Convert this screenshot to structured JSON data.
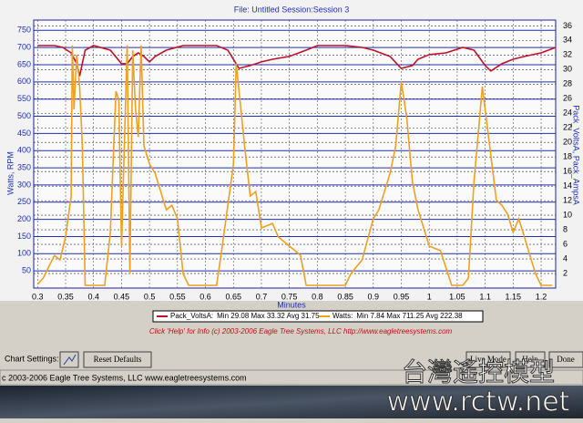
{
  "chart_data": {
    "type": "line",
    "title": "File: Untitled   Session:Session 3",
    "x_label": "Minutes",
    "y_label": "Watts, RPM",
    "y2_label": "Pack_VoltsA, Pack_AmpsA",
    "xlim": [
      0.293,
      1.226
    ],
    "xticks": [
      0.3,
      0.35,
      0.4,
      0.45,
      0.5,
      0.55,
      0.6,
      0.65,
      0.7,
      0.75,
      0.8,
      0.85,
      0.9,
      0.95,
      1,
      1.05,
      1.1,
      1.15,
      1.2
    ],
    "ylim": [
      0,
      780
    ],
    "yticks": [
      50,
      100,
      150,
      200,
      250,
      300,
      350,
      400,
      450,
      500,
      550,
      600,
      650,
      700,
      750
    ],
    "y2lim": [
      0,
      36.8
    ],
    "y2ticks": [
      2,
      4,
      6,
      8,
      10,
      12,
      14,
      16,
      18,
      20,
      22,
      24,
      26,
      28,
      30,
      32,
      34,
      36
    ],
    "grid": true,
    "series": [
      {
        "name": "Pack_VoltsA:",
        "stats": "Min 29.08 Max 33.32 Avg 31.75",
        "color": "#c0102a",
        "axis": "y2",
        "x": [
          0.3,
          0.33,
          0.345,
          0.36,
          0.37,
          0.375,
          0.385,
          0.4,
          0.43,
          0.45,
          0.46,
          0.47,
          0.48,
          0.49,
          0.5,
          0.51,
          0.53,
          0.56,
          0.62,
          0.64,
          0.66,
          0.68,
          0.7,
          0.72,
          0.75,
          0.78,
          0.8,
          0.85,
          0.88,
          0.9,
          0.93,
          0.95,
          0.97,
          0.98,
          1.0,
          1.03,
          1.06,
          1.08,
          1.1,
          1.11,
          1.13,
          1.15,
          1.17,
          1.2,
          1.226
        ],
        "values": [
          33.3,
          33.3,
          33.05,
          32.3,
          30.8,
          29.1,
          32.67,
          33.3,
          32.67,
          30.8,
          30.8,
          31.8,
          32.3,
          31.8,
          31.05,
          31.8,
          32.67,
          33.3,
          33.3,
          32.67,
          30.17,
          30.55,
          31.05,
          31.42,
          31.8,
          32.67,
          33.3,
          33.3,
          33.05,
          32.67,
          31.8,
          30.17,
          30.55,
          31.42,
          32.05,
          32.3,
          33.05,
          32.67,
          30.55,
          29.8,
          30.8,
          31.42,
          31.8,
          32.3,
          33.05
        ]
      },
      {
        "name": "Watts:",
        "stats": "Min 7.84 Max 711.25 Avg 222.38",
        "color": "#f0a020",
        "x": [
          0.3,
          0.31,
          0.33,
          0.34,
          0.35,
          0.36,
          0.362,
          0.365,
          0.37,
          0.375,
          0.38,
          0.385,
          0.39,
          0.42,
          0.43,
          0.44,
          0.445,
          0.45,
          0.46,
          0.465,
          0.47,
          0.475,
          0.48,
          0.485,
          0.49,
          0.5,
          0.51,
          0.52,
          0.53,
          0.54,
          0.55,
          0.56,
          0.57,
          0.62,
          0.63,
          0.65,
          0.655,
          0.66,
          0.665,
          0.67,
          0.68,
          0.69,
          0.7,
          0.72,
          0.73,
          0.75,
          0.76,
          0.77,
          0.78,
          0.85,
          0.86,
          0.88,
          0.9,
          0.91,
          0.93,
          0.94,
          0.95,
          0.955,
          0.96,
          0.97,
          0.98,
          0.99,
          1.0,
          1.02,
          1.04,
          1.06,
          1.07,
          1.08,
          1.095,
          1.1,
          1.11,
          1.12,
          1.13,
          1.14,
          1.15,
          1.16,
          1.17,
          1.18,
          1.19,
          1.2,
          1.22
        ],
        "values": [
          11,
          29,
          95,
          82,
          149,
          268,
          706,
          520,
          679,
          586,
          414,
          8,
          8,
          8,
          162,
          573,
          547,
          122,
          706,
          42,
          692,
          520,
          440,
          706,
          414,
          361,
          334,
          281,
          228,
          241,
          202,
          42,
          8,
          8,
          122,
          361,
          653,
          573,
          493,
          414,
          268,
          281,
          175,
          188,
          149,
          122,
          109,
          95,
          8,
          8,
          42,
          82,
          202,
          228,
          334,
          414,
          600,
          547,
          493,
          308,
          228,
          175,
          122,
          109,
          8,
          8,
          29,
          308,
          586,
          520,
          387,
          255,
          241,
          215,
          162,
          202,
          149,
          95,
          42,
          8,
          8
        ]
      }
    ]
  },
  "ui": {
    "info": "Click 'Help' for Info  (c) 2003-2006 Eagle Tree Systems, LLC      http://www.eagletreesystems.com",
    "chart_settings": "Chart Settings:",
    "reset_defaults": "Reset Defaults",
    "live_mode": "Live Mode",
    "help": "Help",
    "done": "Done",
    "status": "c 2003-2006 Eagle Tree Systems, LLC    www.eagletreesystems.com",
    "watermark_cn": "台灣遙控模型",
    "watermark_url": "www.rctw.net"
  }
}
